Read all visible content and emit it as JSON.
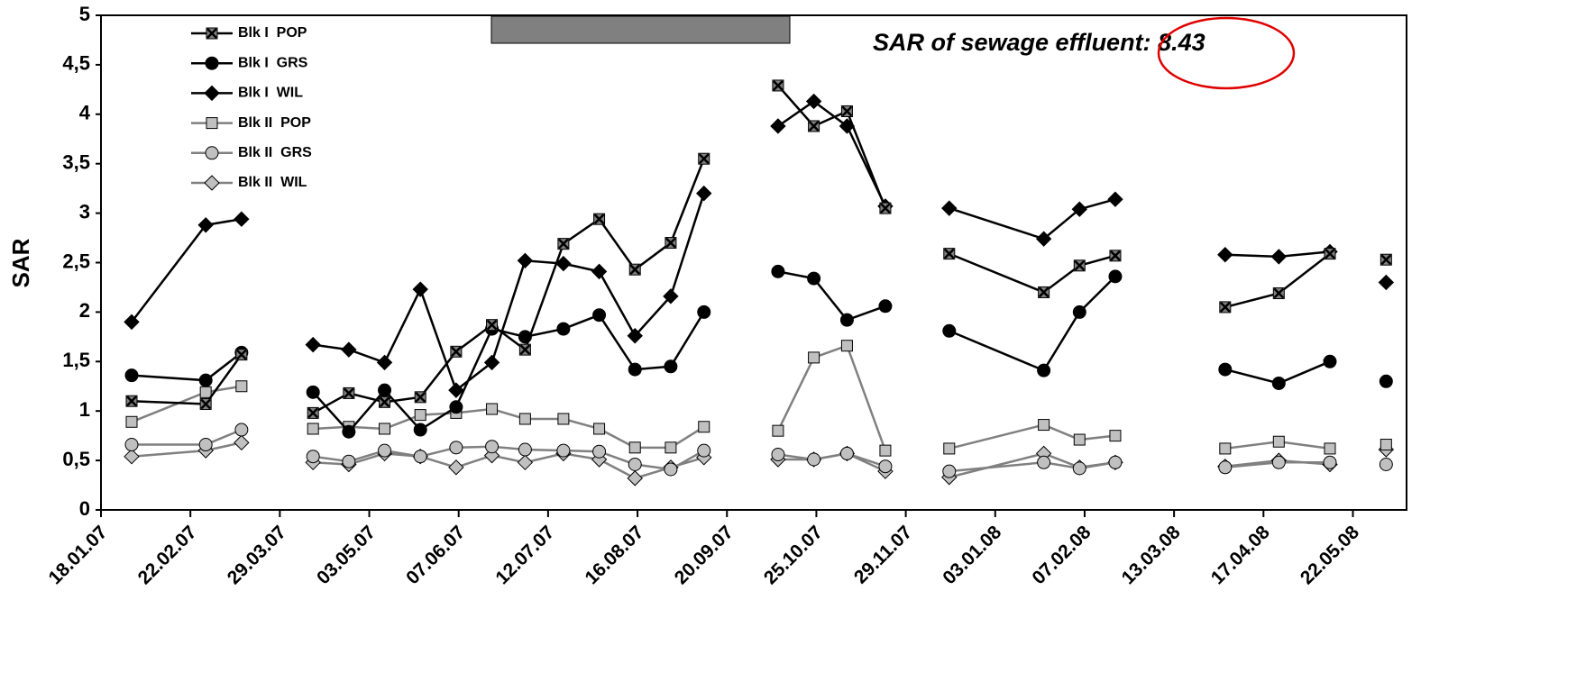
{
  "chart_data": {
    "type": "line",
    "ylabel": "SAR",
    "annotation": "SAR of sewage effluent: 8.43",
    "x": [
      "30.01.07",
      "28.02.07",
      "14.03.07",
      null,
      "11.04.07",
      "25.04.07",
      "09.05.07",
      "23.05.07",
      "06.06.07",
      "20.06.07",
      "03.07.07",
      "18.07.07",
      "01.08.07",
      "15.08.07",
      "29.08.07",
      "11.09.07",
      null,
      "10.10.07",
      "24.10.07",
      "06.11.07",
      "21.11.07",
      null,
      "16.12.07",
      "22.01.08",
      "05.02.08",
      "19.02.08",
      null,
      "02.04.08",
      "23.04.08",
      "13.05.08",
      null,
      "04.06.08"
    ],
    "series": [
      {
        "name": "Blk I  POP",
        "color": "#000000",
        "marker": "square-x",
        "marker_fill": "#808080",
        "values": [
          1.1,
          1.07,
          1.57,
          null,
          0.98,
          1.18,
          1.09,
          1.14,
          1.6,
          1.87,
          1.62,
          2.69,
          2.94,
          2.43,
          2.7,
          3.55,
          null,
          4.29,
          3.88,
          4.03,
          3.05,
          null,
          2.59,
          2.2,
          2.47,
          2.57,
          null,
          2.05,
          2.19,
          2.59,
          null,
          2.53
        ]
      },
      {
        "name": "Blk I  GRS",
        "color": "#000000",
        "marker": "circle",
        "marker_fill": "#000000",
        "values": [
          1.36,
          1.31,
          1.59,
          null,
          1.19,
          0.79,
          1.21,
          0.81,
          1.04,
          1.83,
          1.75,
          1.83,
          1.97,
          1.42,
          1.45,
          2.0,
          null,
          2.41,
          2.34,
          1.92,
          2.06,
          null,
          1.81,
          1.41,
          2.0,
          2.36,
          null,
          1.42,
          1.28,
          1.5,
          null,
          1.3
        ]
      },
      {
        "name": "Blk I  WIL",
        "color": "#000000",
        "marker": "diamond",
        "marker_fill": "#000000",
        "values": [
          1.9,
          2.88,
          2.94,
          null,
          1.67,
          1.62,
          1.49,
          2.23,
          1.21,
          1.49,
          2.52,
          2.49,
          2.41,
          1.76,
          2.16,
          3.2,
          null,
          3.88,
          4.13,
          3.88,
          3.07,
          null,
          3.05,
          2.74,
          3.04,
          3.14,
          null,
          2.58,
          2.56,
          2.61,
          null,
          2.3
        ]
      },
      {
        "name": "Blk II  POP",
        "color": "#808080",
        "marker": "square",
        "marker_fill": "#c0c0c0",
        "values": [
          0.89,
          1.19,
          1.25,
          null,
          0.82,
          0.84,
          0.82,
          0.96,
          0.98,
          1.02,
          0.92,
          0.92,
          0.82,
          0.63,
          0.63,
          0.84,
          null,
          0.8,
          1.54,
          1.66,
          0.6,
          null,
          0.62,
          0.86,
          0.71,
          0.75,
          null,
          0.62,
          0.69,
          0.62,
          null,
          0.66
        ]
      },
      {
        "name": "Blk II  GRS",
        "color": "#808080",
        "marker": "circle",
        "marker_fill": "#c0c0c0",
        "values": [
          0.66,
          0.66,
          0.81,
          null,
          0.54,
          0.49,
          0.6,
          0.54,
          0.63,
          0.64,
          0.61,
          0.6,
          0.59,
          0.46,
          0.41,
          0.6,
          null,
          0.56,
          0.51,
          0.57,
          0.44,
          null,
          0.39,
          0.48,
          0.42,
          0.48,
          null,
          0.43,
          0.48,
          0.48,
          null,
          0.46
        ]
      },
      {
        "name": "Blk II  WIL",
        "color": "#808080",
        "marker": "diamond",
        "marker_fill": "#c0c0c0",
        "values": [
          0.54,
          0.6,
          0.68,
          null,
          0.48,
          0.46,
          0.57,
          0.54,
          0.43,
          0.55,
          0.48,
          0.57,
          0.51,
          0.32,
          0.43,
          0.53,
          null,
          0.51,
          0.51,
          0.57,
          0.39,
          null,
          0.33,
          0.57,
          0.43,
          0.48,
          null,
          0.44,
          0.5,
          0.46,
          null,
          0.61
        ]
      }
    ],
    "xlim": [
      "18.01.07",
      "12.06.08"
    ],
    "xticks": [
      "18.01.07",
      "22.02.07",
      "29.03.07",
      "03.05.07",
      "07.06.07",
      "12.07.07",
      "16.08.07",
      "20.09.07",
      "25.10.07",
      "29.11.07",
      "03.01.08",
      "07.02.08",
      "13.03.08",
      "17.04.08",
      "22.05.08"
    ],
    "ylim": [
      0,
      5
    ],
    "yticks": [
      0,
      {
        "value": 0.5,
        "label": "0,5"
      },
      1,
      {
        "value": 1.5,
        "label": "1,5"
      },
      2,
      {
        "value": 2.5,
        "label": "2,5"
      },
      3,
      {
        "value": 3.5,
        "label": "3,5"
      },
      4,
      {
        "value": 4.5,
        "label": "4,5"
      },
      5
    ],
    "grid": false,
    "legend": "upper left"
  }
}
